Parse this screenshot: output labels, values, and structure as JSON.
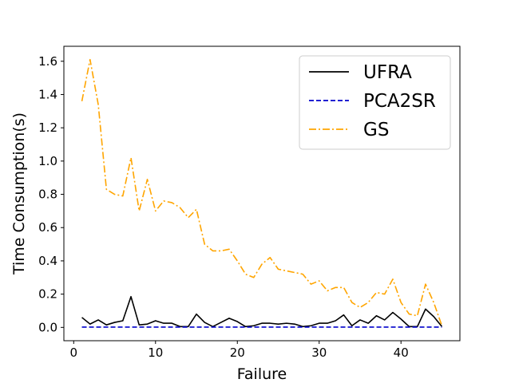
{
  "chart_data": {
    "type": "line",
    "xlabel": "Failure",
    "ylabel": "Time Consumption(s)",
    "xlim": [
      -1.2,
      47.2
    ],
    "ylim": [
      -0.08,
      1.69
    ],
    "xticks": [
      0,
      10,
      20,
      30,
      40
    ],
    "yticks": [
      0.0,
      0.2,
      0.4,
      0.6,
      0.8,
      1.0,
      1.2,
      1.4,
      1.6
    ],
    "ytick_labels": [
      "0.0",
      "0.2",
      "0.4",
      "0.6",
      "0.8",
      "1.0",
      "1.2",
      "1.4",
      "1.6"
    ],
    "grid": false,
    "legend_position": "top-right",
    "x": [
      1,
      2,
      3,
      4,
      5,
      6,
      7,
      8,
      9,
      10,
      11,
      12,
      13,
      14,
      15,
      16,
      17,
      18,
      19,
      20,
      21,
      22,
      23,
      24,
      25,
      26,
      27,
      28,
      29,
      30,
      31,
      32,
      33,
      34,
      35,
      36,
      37,
      38,
      39,
      40,
      41,
      42,
      43,
      44,
      45
    ],
    "series": [
      {
        "name": "UFRA",
        "color": "#000000",
        "dash": "solid",
        "values": [
          0.06,
          0.02,
          0.045,
          0.015,
          0.03,
          0.04,
          0.185,
          0.015,
          0.02,
          0.04,
          0.025,
          0.025,
          0.005,
          0.005,
          0.08,
          0.03,
          0.005,
          0.03,
          0.055,
          0.035,
          0.005,
          0.01,
          0.025,
          0.025,
          0.02,
          0.025,
          0.02,
          0.005,
          0.01,
          0.025,
          0.025,
          0.04,
          0.075,
          0.01,
          0.045,
          0.025,
          0.07,
          0.045,
          0.09,
          0.05,
          0.005,
          0.005,
          0.11,
          0.065,
          0.005
        ]
      },
      {
        "name": "PCA2SR",
        "color": "#0000cc",
        "dash": "dashed",
        "values": [
          0.002,
          0.002,
          0.002,
          0.002,
          0.002,
          0.002,
          0.002,
          0.002,
          0.002,
          0.002,
          0.002,
          0.002,
          0.002,
          0.002,
          0.002,
          0.002,
          0.002,
          0.002,
          0.002,
          0.002,
          0.002,
          0.002,
          0.002,
          0.002,
          0.002,
          0.002,
          0.002,
          0.002,
          0.002,
          0.002,
          0.002,
          0.002,
          0.002,
          0.002,
          0.002,
          0.002,
          0.002,
          0.002,
          0.002,
          0.002,
          0.002,
          0.002,
          0.002,
          0.002,
          0.002
        ]
      },
      {
        "name": "GS",
        "color": "#ffa500",
        "dash": "dashdot",
        "values": [
          1.36,
          1.61,
          1.34,
          0.83,
          0.8,
          0.79,
          1.02,
          0.7,
          0.89,
          0.7,
          0.76,
          0.75,
          0.72,
          0.66,
          0.71,
          0.5,
          0.46,
          0.46,
          0.47,
          0.4,
          0.32,
          0.3,
          0.38,
          0.42,
          0.35,
          0.34,
          0.33,
          0.32,
          0.26,
          0.28,
          0.22,
          0.24,
          0.24,
          0.15,
          0.12,
          0.15,
          0.21,
          0.2,
          0.29,
          0.15,
          0.08,
          0.07,
          0.26,
          0.15,
          0.01
        ]
      }
    ]
  }
}
